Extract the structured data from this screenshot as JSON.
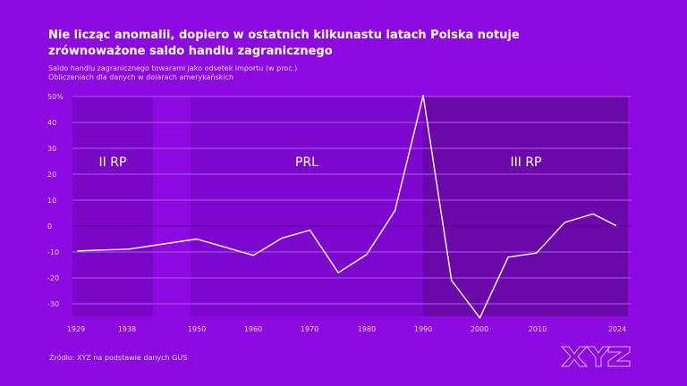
{
  "title": "Nie licząc anomalii, dopiero w ostatnich kilkunastu latach Polska notuje zrównoważone saldo handlu zagranicznego",
  "subtitle_lines": [
    "Saldo handlu zagranicznego towarami jako odsetek importu (w proc.)",
    "Obliczeniach dla danych w dolarach amerykańskich"
  ],
  "source": "Źródło: XYZ na podstawie danych GUS",
  "logo": "XYZ",
  "colors": {
    "background": "#8c0ae0",
    "line": "#ffffff",
    "ii_rp": "#7a06c8",
    "prl": "#7d07cf",
    "iii_rp": "#6b08aa"
  },
  "chart_data": {
    "type": "line",
    "title": "",
    "xlabel": "",
    "ylabel": "",
    "ylim": [
      -35,
      50
    ],
    "grid": true,
    "y_ticks": [
      "50%",
      "40",
      "30",
      "20",
      "10",
      "0",
      "-10",
      "-20",
      "-30"
    ],
    "y_tick_values": [
      50,
      40,
      30,
      20,
      10,
      0,
      -10,
      -20,
      -30
    ],
    "x_ticks": [
      "1929",
      "1938",
      "1950",
      "1960",
      "1970",
      "1980",
      "1990",
      "2000",
      "2010",
      "2024"
    ],
    "eras": [
      {
        "label": "II RP",
        "from": 1929,
        "to": 1943
      },
      {
        "label": "PRL",
        "from": 1949,
        "to": 1990
      },
      {
        "label": "III RP",
        "from": 1990,
        "to": 2026
      }
    ],
    "series": [
      {
        "x": [
          1929,
          1938,
          1950,
          1960,
          1965,
          1970,
          1975,
          1980,
          1985,
          1990,
          1995,
          2000,
          2005,
          2010,
          2015,
          2020,
          2024
        ],
        "values": [
          -9.6,
          -8.9,
          -5,
          -11.3,
          -4.7,
          -1.6,
          -18,
          -11,
          5.9,
          50.4,
          -21,
          -35.4,
          -12,
          -10.4,
          1.4,
          4.7,
          0.2
        ]
      }
    ]
  }
}
